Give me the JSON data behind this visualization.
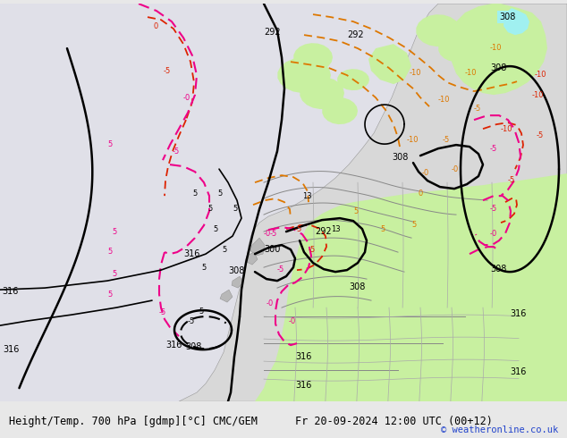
{
  "title_left": "Height/Temp. 700 hPa [gdmp][°C] CMC/GEM",
  "title_right": "Fr 20-09-2024 12:00 UTC (00+12)",
  "copyright": "© weatheronline.co.uk",
  "bg_color": "#e8e8e8",
  "ocean_color": "#e0e0e8",
  "land_color": "#d8d8d8",
  "green_color": "#c8f0a0",
  "cyan_color": "#a0f0f0",
  "gray_land_color": "#c0c0c0",
  "bottom_bar_color": "#d0d0d0",
  "text_color": "#000000",
  "title_fontsize": 8.5,
  "copyright_color": "#2244cc",
  "copyright_fontsize": 7.5,
  "label_fontsize": 7,
  "contour_label_fontsize": 7
}
